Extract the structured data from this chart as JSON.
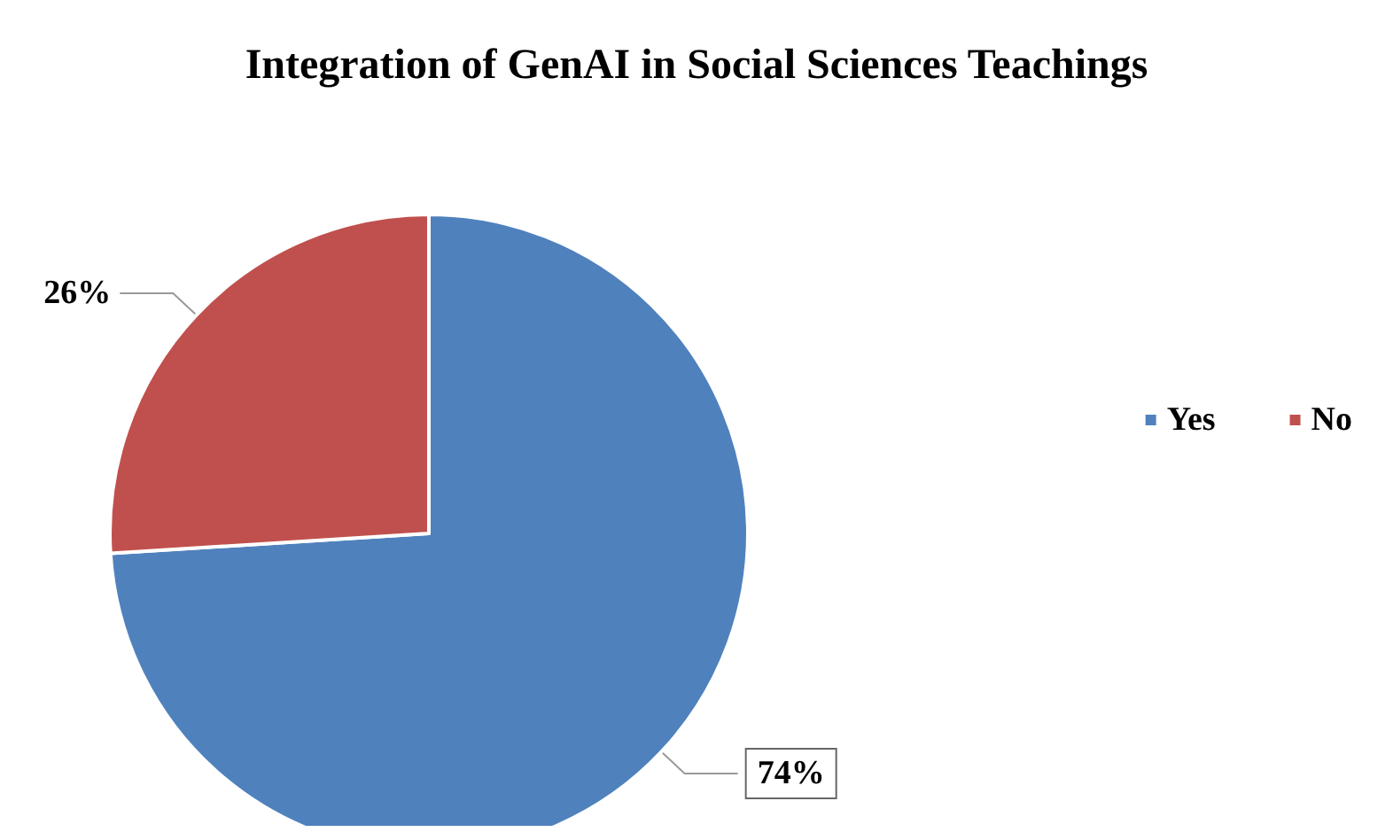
{
  "chart_data": {
    "type": "pie",
    "title": "Integration of GenAI in Social Sciences Teachings",
    "categories": [
      "Yes",
      "No"
    ],
    "values": [
      74,
      26
    ],
    "value_labels": [
      "74%",
      "26%"
    ],
    "colors": [
      "#4f81bd",
      "#c0504d"
    ],
    "legend": "right"
  }
}
